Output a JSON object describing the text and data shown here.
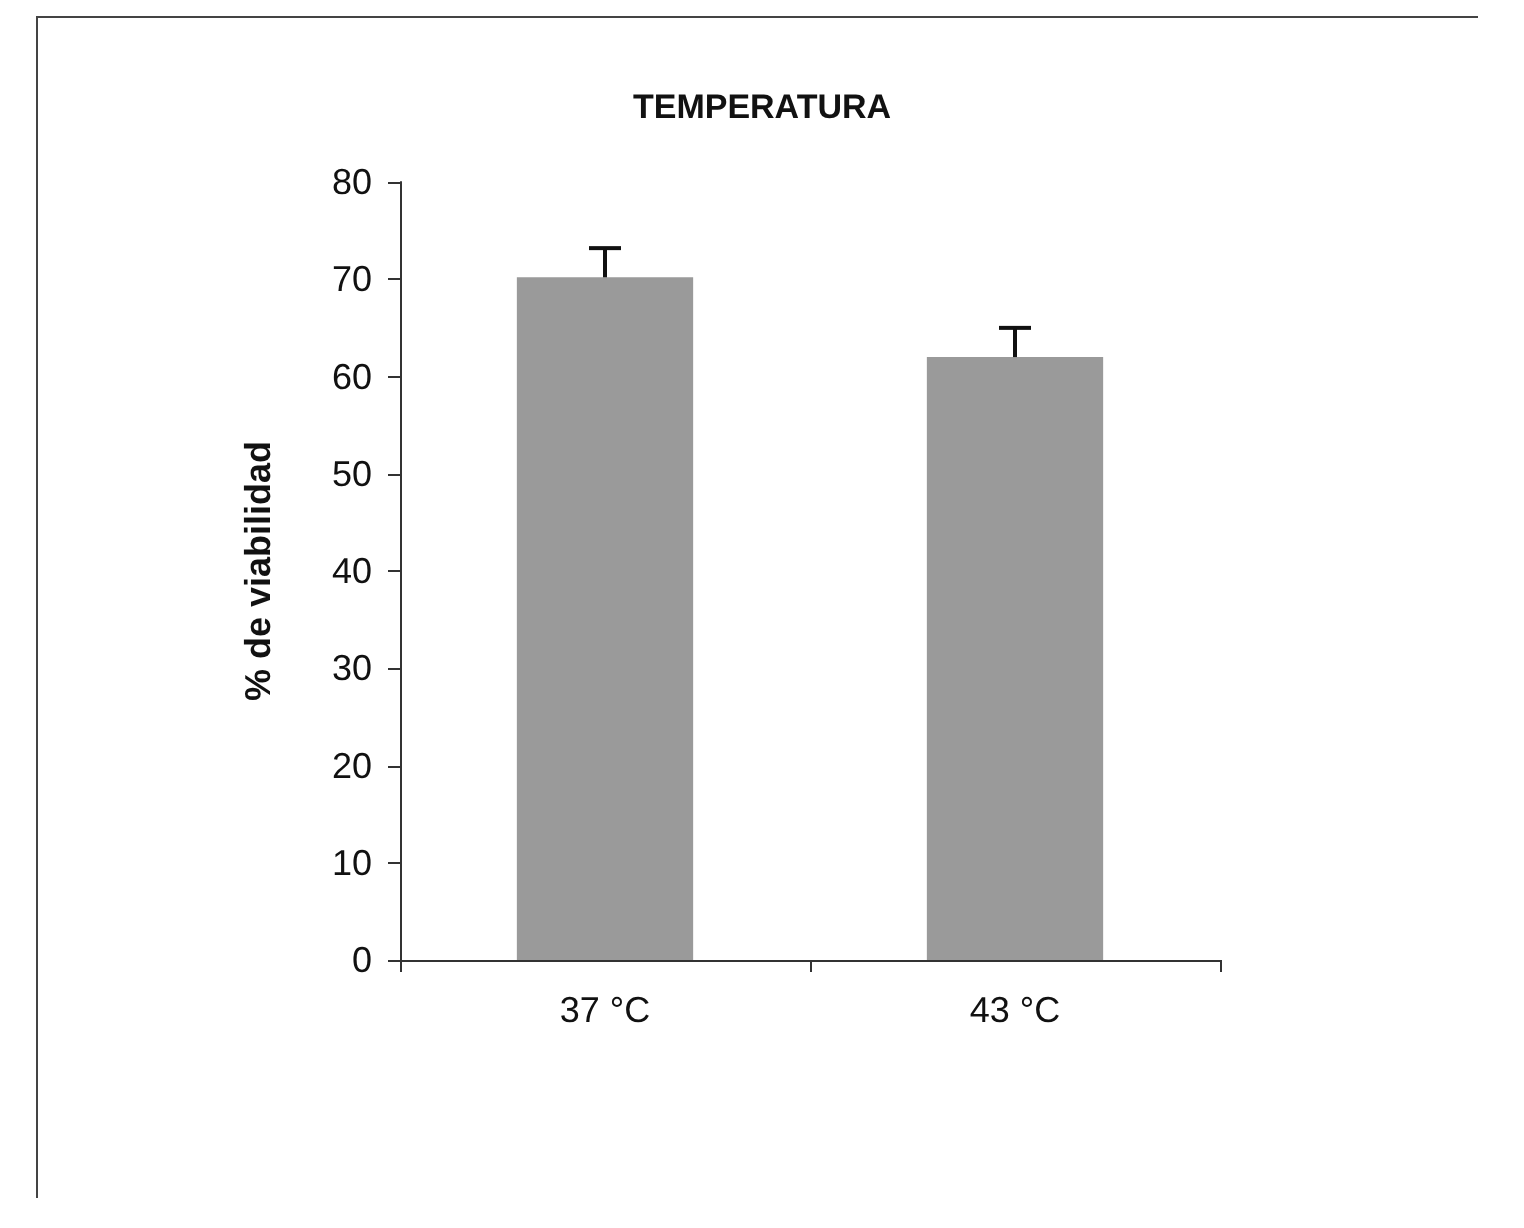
{
  "chart_data": {
    "type": "bar",
    "title": "TEMPERATURA",
    "ylabel": "% de viabilidad",
    "categories": [
      "37 °C",
      "43 °C"
    ],
    "series": [
      {
        "color": "#9a9a9a",
        "values": [
          70.2,
          62
        ],
        "errors": [
          [
            70.2,
            73.2
          ],
          [
            62,
            65
          ]
        ]
      }
    ],
    "ylim": [
      0,
      80
    ],
    "yticks": [
      0,
      10,
      20,
      30,
      40,
      50,
      60,
      70,
      80
    ],
    "grid": false
  }
}
